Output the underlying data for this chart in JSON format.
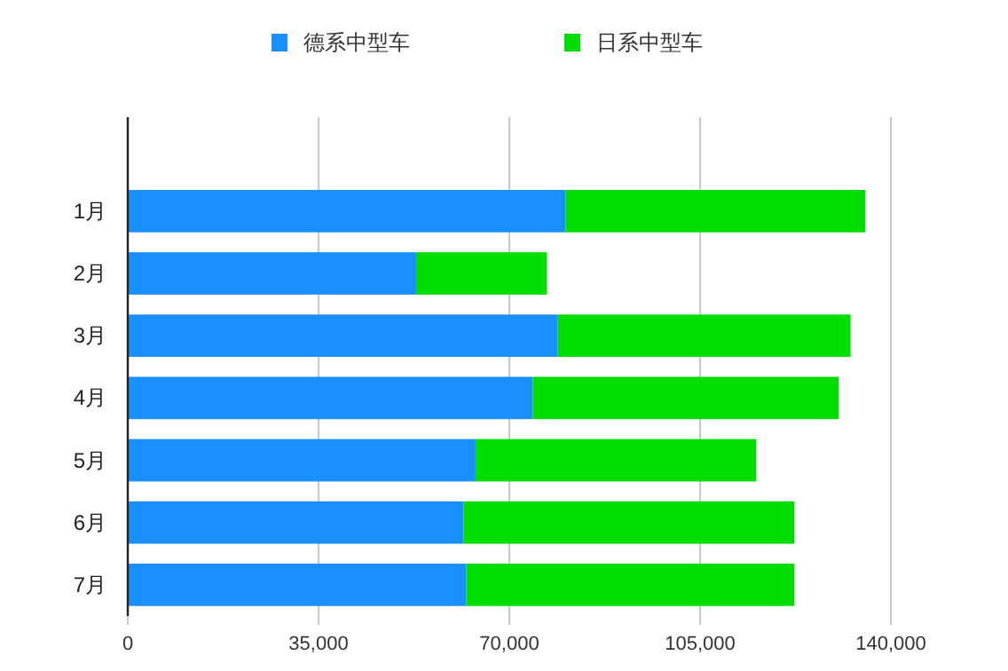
{
  "chart_data": {
    "type": "bar",
    "orientation": "horizontal",
    "stacked": true,
    "categories": [
      "1月",
      "2月",
      "3月",
      "4月",
      "5月",
      "6月",
      "7月"
    ],
    "series": [
      {
        "name": "德系中型车",
        "color": "#1a8fff",
        "values": [
          80300,
          52900,
          78900,
          74300,
          63800,
          61600,
          62100
        ]
      },
      {
        "name": "日系中型车",
        "color": "#00dd00",
        "values": [
          55000,
          24000,
          53700,
          56100,
          51500,
          60700,
          60200
        ]
      }
    ],
    "xlim": [
      0,
      140000
    ],
    "xticks": [
      0,
      {
        "value": 35000,
        "label": "35,000"
      },
      {
        "value": 70000,
        "label": "70,000"
      },
      {
        "value": 105000,
        "label": "105,000"
      },
      {
        "value": 140000,
        "label": "140,000"
      }
    ],
    "grid": "x",
    "legend": "top"
  }
}
